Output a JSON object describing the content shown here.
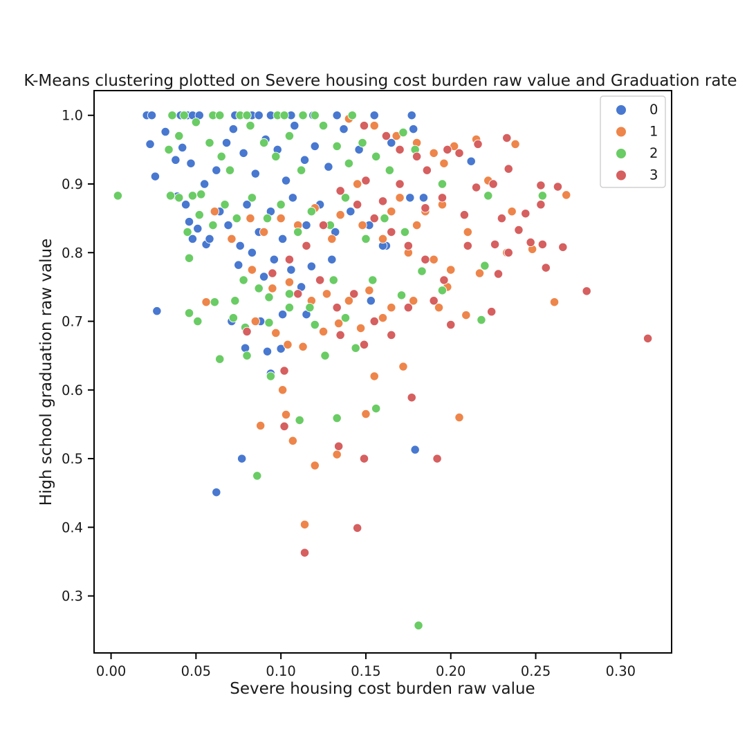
{
  "chart_data": {
    "type": "scatter",
    "title": "K-Means clustering plotted on Severe housing cost burden raw value and Graduation rate",
    "xlabel": "Severe housing cost burden raw value",
    "ylabel": "High school graduation raw value",
    "xlim": [
      -0.01,
      0.33
    ],
    "ylim": [
      0.217,
      1.036
    ],
    "xticks": [
      "0.00",
      "0.05",
      "0.10",
      "0.15",
      "0.20",
      "0.25",
      "0.30"
    ],
    "yticks": [
      "0.3",
      "0.4",
      "0.5",
      "0.6",
      "0.7",
      "0.8",
      "0.9",
      "1.0"
    ],
    "grid": false,
    "legend_position": "top-right",
    "series": [
      {
        "name": "0",
        "color": "#4878d0",
        "points": [
          [
            0.021,
            1.0
          ],
          [
            0.024,
            1.0
          ],
          [
            0.041,
            1.0
          ],
          [
            0.045,
            1.0
          ],
          [
            0.048,
            1.0
          ],
          [
            0.052,
            1.0
          ],
          [
            0.073,
            1.0
          ],
          [
            0.083,
            1.0
          ],
          [
            0.087,
            1.0
          ],
          [
            0.094,
            1.0
          ],
          [
            0.106,
            1.0
          ],
          [
            0.119,
            1.0
          ],
          [
            0.133,
            1.0
          ],
          [
            0.155,
            1.0
          ],
          [
            0.177,
            1.0
          ],
          [
            0.023,
            0.958
          ],
          [
            0.026,
            0.911
          ],
          [
            0.032,
            0.976
          ],
          [
            0.038,
            0.935
          ],
          [
            0.042,
            0.953
          ],
          [
            0.047,
            0.93
          ],
          [
            0.055,
            0.9
          ],
          [
            0.062,
            0.92
          ],
          [
            0.068,
            0.96
          ],
          [
            0.072,
            0.98
          ],
          [
            0.078,
            0.945
          ],
          [
            0.085,
            0.915
          ],
          [
            0.091,
            0.965
          ],
          [
            0.098,
            0.95
          ],
          [
            0.103,
            0.905
          ],
          [
            0.108,
            0.985
          ],
          [
            0.114,
            0.935
          ],
          [
            0.12,
            0.955
          ],
          [
            0.128,
            0.925
          ],
          [
            0.137,
            0.98
          ],
          [
            0.146,
            0.95
          ],
          [
            0.165,
            0.96
          ],
          [
            0.178,
            0.98
          ],
          [
            0.212,
            0.933
          ],
          [
            0.039,
            0.882
          ],
          [
            0.044,
            0.87
          ],
          [
            0.046,
            0.845
          ],
          [
            0.048,
            0.82
          ],
          [
            0.051,
            0.835
          ],
          [
            0.056,
            0.812
          ],
          [
            0.058,
            0.82
          ],
          [
            0.064,
            0.86
          ],
          [
            0.069,
            0.84
          ],
          [
            0.076,
            0.81
          ],
          [
            0.08,
            0.87
          ],
          [
            0.087,
            0.83
          ],
          [
            0.094,
            0.86
          ],
          [
            0.101,
            0.82
          ],
          [
            0.107,
            0.88
          ],
          [
            0.115,
            0.84
          ],
          [
            0.123,
            0.87
          ],
          [
            0.132,
            0.83
          ],
          [
            0.141,
            0.86
          ],
          [
            0.152,
            0.84
          ],
          [
            0.162,
            0.81
          ],
          [
            0.176,
            0.88
          ],
          [
            0.184,
            0.88
          ],
          [
            0.075,
            0.782
          ],
          [
            0.083,
            0.8
          ],
          [
            0.09,
            0.765
          ],
          [
            0.096,
            0.79
          ],
          [
            0.106,
            0.775
          ],
          [
            0.118,
            0.78
          ],
          [
            0.071,
            0.7
          ],
          [
            0.088,
            0.7
          ],
          [
            0.101,
            0.71
          ],
          [
            0.115,
            0.71
          ],
          [
            0.079,
            0.661
          ],
          [
            0.092,
            0.656
          ],
          [
            0.1,
            0.66
          ],
          [
            0.094,
            0.624
          ],
          [
            0.027,
            0.715
          ],
          [
            0.077,
            0.5
          ],
          [
            0.062,
            0.451
          ],
          [
            0.179,
            0.513
          ],
          [
            0.16,
            0.81
          ],
          [
            0.13,
            0.79
          ],
          [
            0.153,
            0.73
          ],
          [
            0.112,
            0.75
          ]
        ]
      },
      {
        "name": "1",
        "color": "#ee854a",
        "points": [
          [
            0.14,
            0.995
          ],
          [
            0.155,
            0.985
          ],
          [
            0.168,
            0.97
          ],
          [
            0.18,
            0.96
          ],
          [
            0.19,
            0.945
          ],
          [
            0.196,
            0.93
          ],
          [
            0.202,
            0.955
          ],
          [
            0.215,
            0.965
          ],
          [
            0.238,
            0.958
          ],
          [
            0.222,
            0.905
          ],
          [
            0.236,
            0.86
          ],
          [
            0.268,
            0.884
          ],
          [
            0.248,
            0.805
          ],
          [
            0.233,
            0.8
          ],
          [
            0.217,
            0.77
          ],
          [
            0.2,
            0.775
          ],
          [
            0.19,
            0.79
          ],
          [
            0.175,
            0.8
          ],
          [
            0.16,
            0.82
          ],
          [
            0.148,
            0.84
          ],
          [
            0.135,
            0.855
          ],
          [
            0.12,
            0.865
          ],
          [
            0.11,
            0.84
          ],
          [
            0.1,
            0.85
          ],
          [
            0.09,
            0.83
          ],
          [
            0.082,
            0.85
          ],
          [
            0.071,
            0.82
          ],
          [
            0.061,
            0.86
          ],
          [
            0.083,
            0.775
          ],
          [
            0.095,
            0.748
          ],
          [
            0.105,
            0.757
          ],
          [
            0.118,
            0.73
          ],
          [
            0.127,
            0.74
          ],
          [
            0.14,
            0.73
          ],
          [
            0.152,
            0.745
          ],
          [
            0.165,
            0.72
          ],
          [
            0.178,
            0.73
          ],
          [
            0.193,
            0.72
          ],
          [
            0.198,
            0.75
          ],
          [
            0.085,
            0.7
          ],
          [
            0.097,
            0.683
          ],
          [
            0.104,
            0.666
          ],
          [
            0.113,
            0.663
          ],
          [
            0.125,
            0.685
          ],
          [
            0.134,
            0.697
          ],
          [
            0.147,
            0.69
          ],
          [
            0.16,
            0.705
          ],
          [
            0.056,
            0.728
          ],
          [
            0.261,
            0.728
          ],
          [
            0.209,
            0.709
          ],
          [
            0.172,
            0.634
          ],
          [
            0.155,
            0.62
          ],
          [
            0.101,
            0.6
          ],
          [
            0.088,
            0.548
          ],
          [
            0.103,
            0.564
          ],
          [
            0.107,
            0.526
          ],
          [
            0.12,
            0.49
          ],
          [
            0.133,
            0.506
          ],
          [
            0.15,
            0.565
          ],
          [
            0.205,
            0.56
          ],
          [
            0.114,
            0.404
          ],
          [
            0.185,
            0.86
          ],
          [
            0.21,
            0.83
          ],
          [
            0.23,
            0.85
          ],
          [
            0.17,
            0.88
          ],
          [
            0.145,
            0.9
          ],
          [
            0.195,
            0.87
          ],
          [
            0.18,
            0.84
          ],
          [
            0.13,
            0.82
          ],
          [
            0.165,
            0.86
          ]
        ]
      },
      {
        "name": "2",
        "color": "#6acc64",
        "points": [
          [
            0.036,
            1.0
          ],
          [
            0.043,
            1.0
          ],
          [
            0.06,
            1.0
          ],
          [
            0.064,
            1.0
          ],
          [
            0.076,
            1.0
          ],
          [
            0.08,
            1.0
          ],
          [
            0.098,
            1.0
          ],
          [
            0.102,
            1.0
          ],
          [
            0.113,
            1.0
          ],
          [
            0.12,
            1.0
          ],
          [
            0.142,
            1.0
          ],
          [
            0.004,
            0.883
          ],
          [
            0.035,
            0.883
          ],
          [
            0.04,
            0.88
          ],
          [
            0.048,
            0.883
          ],
          [
            0.053,
            0.885
          ],
          [
            0.034,
            0.95
          ],
          [
            0.04,
            0.97
          ],
          [
            0.05,
            0.99
          ],
          [
            0.058,
            0.96
          ],
          [
            0.065,
            0.94
          ],
          [
            0.07,
            0.92
          ],
          [
            0.082,
            0.985
          ],
          [
            0.09,
            0.96
          ],
          [
            0.097,
            0.94
          ],
          [
            0.105,
            0.97
          ],
          [
            0.112,
            0.92
          ],
          [
            0.125,
            0.985
          ],
          [
            0.133,
            0.955
          ],
          [
            0.14,
            0.93
          ],
          [
            0.148,
            0.96
          ],
          [
            0.156,
            0.94
          ],
          [
            0.164,
            0.92
          ],
          [
            0.172,
            0.975
          ],
          [
            0.179,
            0.95
          ],
          [
            0.045,
            0.83
          ],
          [
            0.052,
            0.855
          ],
          [
            0.06,
            0.84
          ],
          [
            0.067,
            0.87
          ],
          [
            0.074,
            0.85
          ],
          [
            0.083,
            0.88
          ],
          [
            0.092,
            0.85
          ],
          [
            0.1,
            0.87
          ],
          [
            0.11,
            0.83
          ],
          [
            0.118,
            0.86
          ],
          [
            0.129,
            0.84
          ],
          [
            0.138,
            0.88
          ],
          [
            0.15,
            0.82
          ],
          [
            0.161,
            0.85
          ],
          [
            0.173,
            0.83
          ],
          [
            0.195,
            0.9
          ],
          [
            0.222,
            0.883
          ],
          [
            0.254,
            0.883
          ],
          [
            0.046,
            0.792
          ],
          [
            0.078,
            0.76
          ],
          [
            0.087,
            0.748
          ],
          [
            0.093,
            0.735
          ],
          [
            0.105,
            0.74
          ],
          [
            0.117,
            0.72
          ],
          [
            0.131,
            0.76
          ],
          [
            0.143,
            0.74
          ],
          [
            0.154,
            0.76
          ],
          [
            0.171,
            0.738
          ],
          [
            0.183,
            0.773
          ],
          [
            0.195,
            0.745
          ],
          [
            0.073,
            0.73
          ],
          [
            0.079,
            0.691
          ],
          [
            0.093,
            0.698
          ],
          [
            0.105,
            0.72
          ],
          [
            0.12,
            0.695
          ],
          [
            0.138,
            0.705
          ],
          [
            0.144,
            0.661
          ],
          [
            0.218,
            0.702
          ],
          [
            0.046,
            0.712
          ],
          [
            0.051,
            0.7
          ],
          [
            0.061,
            0.728
          ],
          [
            0.072,
            0.705
          ],
          [
            0.08,
            0.65
          ],
          [
            0.064,
            0.645
          ],
          [
            0.126,
            0.65
          ],
          [
            0.094,
            0.62
          ],
          [
            0.111,
            0.556
          ],
          [
            0.133,
            0.559
          ],
          [
            0.156,
            0.573
          ],
          [
            0.086,
            0.475
          ],
          [
            0.181,
            0.257
          ],
          [
            0.22,
            0.781
          ]
        ]
      },
      {
        "name": "3",
        "color": "#d65f5f",
        "points": [
          [
            0.149,
            0.985
          ],
          [
            0.162,
            0.97
          ],
          [
            0.17,
            0.95
          ],
          [
            0.18,
            0.94
          ],
          [
            0.186,
            0.92
          ],
          [
            0.198,
            0.95
          ],
          [
            0.205,
            0.945
          ],
          [
            0.216,
            0.958
          ],
          [
            0.233,
            0.967
          ],
          [
            0.234,
            0.922
          ],
          [
            0.225,
            0.9
          ],
          [
            0.215,
            0.895
          ],
          [
            0.253,
            0.898
          ],
          [
            0.263,
            0.896
          ],
          [
            0.253,
            0.87
          ],
          [
            0.244,
            0.857
          ],
          [
            0.23,
            0.85
          ],
          [
            0.24,
            0.833
          ],
          [
            0.226,
            0.812
          ],
          [
            0.247,
            0.815
          ],
          [
            0.254,
            0.812
          ],
          [
            0.266,
            0.808
          ],
          [
            0.256,
            0.778
          ],
          [
            0.234,
            0.8
          ],
          [
            0.228,
            0.769
          ],
          [
            0.28,
            0.744
          ],
          [
            0.316,
            0.675
          ],
          [
            0.224,
            0.714
          ],
          [
            0.2,
            0.695
          ],
          [
            0.19,
            0.73
          ],
          [
            0.196,
            0.76
          ],
          [
            0.185,
            0.79
          ],
          [
            0.175,
            0.81
          ],
          [
            0.165,
            0.83
          ],
          [
            0.155,
            0.85
          ],
          [
            0.145,
            0.87
          ],
          [
            0.135,
            0.89
          ],
          [
            0.125,
            0.84
          ],
          [
            0.115,
            0.81
          ],
          [
            0.105,
            0.79
          ],
          [
            0.095,
            0.77
          ],
          [
            0.11,
            0.74
          ],
          [
            0.123,
            0.76
          ],
          [
            0.133,
            0.72
          ],
          [
            0.143,
            0.74
          ],
          [
            0.155,
            0.7
          ],
          [
            0.165,
            0.68
          ],
          [
            0.175,
            0.72
          ],
          [
            0.149,
            0.666
          ],
          [
            0.135,
            0.68
          ],
          [
            0.102,
            0.628
          ],
          [
            0.08,
            0.685
          ],
          [
            0.177,
            0.589
          ],
          [
            0.102,
            0.547
          ],
          [
            0.134,
            0.518
          ],
          [
            0.149,
            0.5
          ],
          [
            0.192,
            0.5
          ],
          [
            0.145,
            0.399
          ],
          [
            0.114,
            0.363
          ],
          [
            0.208,
            0.855
          ],
          [
            0.195,
            0.88
          ],
          [
            0.185,
            0.865
          ],
          [
            0.17,
            0.9
          ],
          [
            0.16,
            0.875
          ],
          [
            0.15,
            0.905
          ],
          [
            0.21,
            0.81
          ]
        ]
      }
    ]
  }
}
